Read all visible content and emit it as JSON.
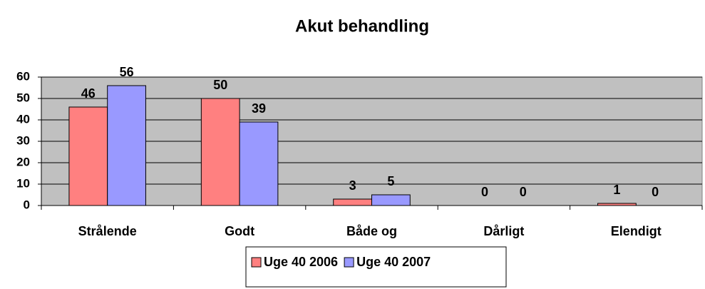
{
  "chart_data": {
    "type": "bar",
    "title": "Akut behandling",
    "categories": [
      "Strålende",
      "Godt",
      "Både og",
      "Dårligt",
      "Elendigt"
    ],
    "series": [
      {
        "name": "Uge 40 2006",
        "color": "#ff8080",
        "values": [
          46,
          50,
          3,
          0,
          1
        ]
      },
      {
        "name": "Uge 40 2007",
        "color": "#9999ff",
        "values": [
          56,
          39,
          5,
          0,
          0
        ]
      }
    ],
    "ylim": [
      0,
      60
    ],
    "yticks": [
      0,
      10,
      20,
      30,
      40,
      50,
      60
    ],
    "grid": true,
    "legend": "bottom"
  }
}
